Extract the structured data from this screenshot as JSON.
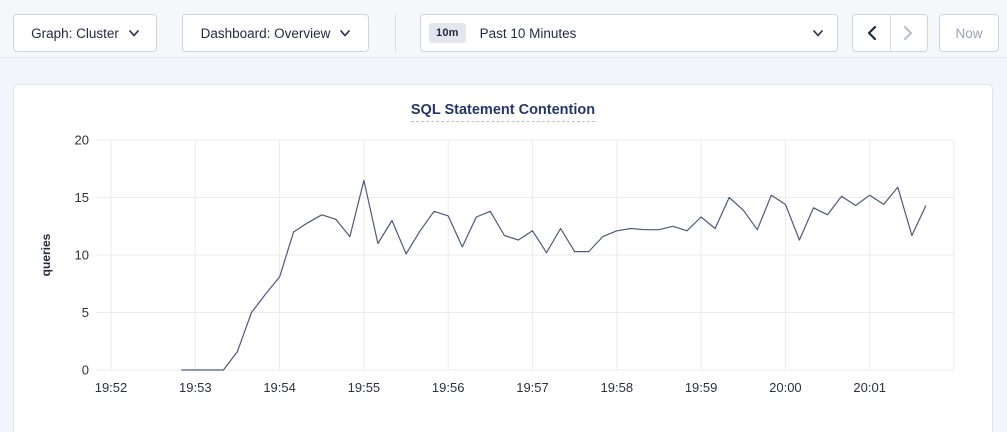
{
  "toolbar": {
    "graph_dropdown": {
      "label": "Graph: Cluster"
    },
    "dashboard_dropdown": {
      "label": "Dashboard: Overview"
    },
    "time_selector": {
      "badge": "10m",
      "label": "Past 10 Minutes"
    },
    "prev_button": {
      "icon": "chevron-left",
      "enabled": true
    },
    "next_button": {
      "icon": "chevron-right",
      "enabled": false
    },
    "now_button": {
      "label": "Now",
      "enabled": false
    }
  },
  "chart_data": {
    "type": "line",
    "title": "SQL Statement Contention",
    "xlabel": "",
    "ylabel": "queries",
    "ylim": [
      0,
      20
    ],
    "y_ticks": [
      0,
      5,
      10,
      15,
      20
    ],
    "x_tick_labels": [
      "19:52",
      "19:53",
      "19:54",
      "19:55",
      "19:56",
      "19:57",
      "19:58",
      "19:59",
      "20:00",
      "20:01"
    ],
    "grid": true,
    "legend": "none",
    "series_name": "queries",
    "points": [
      [
        "19:52:50",
        0
      ],
      [
        "19:53:00",
        0
      ],
      [
        "19:53:10",
        0
      ],
      [
        "19:53:20",
        0
      ],
      [
        "19:53:30",
        1.6
      ],
      [
        "19:53:40",
        5.0
      ],
      [
        "19:53:50",
        6.6
      ],
      [
        "19:54:00",
        8.1
      ],
      [
        "19:54:10",
        12.0
      ],
      [
        "19:54:20",
        12.8
      ],
      [
        "19:54:30",
        13.5
      ],
      [
        "19:54:40",
        13.1
      ],
      [
        "19:54:50",
        11.6
      ],
      [
        "19:55:00",
        16.5
      ],
      [
        "19:55:10",
        11.0
      ],
      [
        "19:55:20",
        13.0
      ],
      [
        "19:55:30",
        10.1
      ],
      [
        "19:55:40",
        12.1
      ],
      [
        "19:55:50",
        13.8
      ],
      [
        "19:56:00",
        13.4
      ],
      [
        "19:56:10",
        10.7
      ],
      [
        "19:56:20",
        13.3
      ],
      [
        "19:56:30",
        13.8
      ],
      [
        "19:56:40",
        11.7
      ],
      [
        "19:56:50",
        11.3
      ],
      [
        "19:57:00",
        12.1
      ],
      [
        "19:57:10",
        10.2
      ],
      [
        "19:57:20",
        12.3
      ],
      [
        "19:57:30",
        10.3
      ],
      [
        "19:57:40",
        10.3
      ],
      [
        "19:57:50",
        11.6
      ],
      [
        "19:58:00",
        12.1
      ],
      [
        "19:58:10",
        12.3
      ],
      [
        "19:58:20",
        12.2
      ],
      [
        "19:58:30",
        12.2
      ],
      [
        "19:58:40",
        12.5
      ],
      [
        "19:58:50",
        12.1
      ],
      [
        "19:59:00",
        13.3
      ],
      [
        "19:59:10",
        12.3
      ],
      [
        "19:59:20",
        15.0
      ],
      [
        "19:59:30",
        13.9
      ],
      [
        "19:59:40",
        12.2
      ],
      [
        "19:59:50",
        15.2
      ],
      [
        "20:00:00",
        14.4
      ],
      [
        "20:00:10",
        11.3
      ],
      [
        "20:00:20",
        14.1
      ],
      [
        "20:00:30",
        13.5
      ],
      [
        "20:00:40",
        15.1
      ],
      [
        "20:00:50",
        14.3
      ],
      [
        "20:01:00",
        15.2
      ],
      [
        "20:01:10",
        14.4
      ],
      [
        "20:01:20",
        15.9
      ],
      [
        "20:01:30",
        11.7
      ],
      [
        "20:01:40",
        14.3
      ]
    ],
    "colors": {
      "line": "#4c5a7a",
      "grid": "#ebebed",
      "title": "#24366b",
      "axis_text": "#2d3239",
      "page_bg": "#f4f5fa",
      "card_bg": "#ffffff"
    }
  }
}
